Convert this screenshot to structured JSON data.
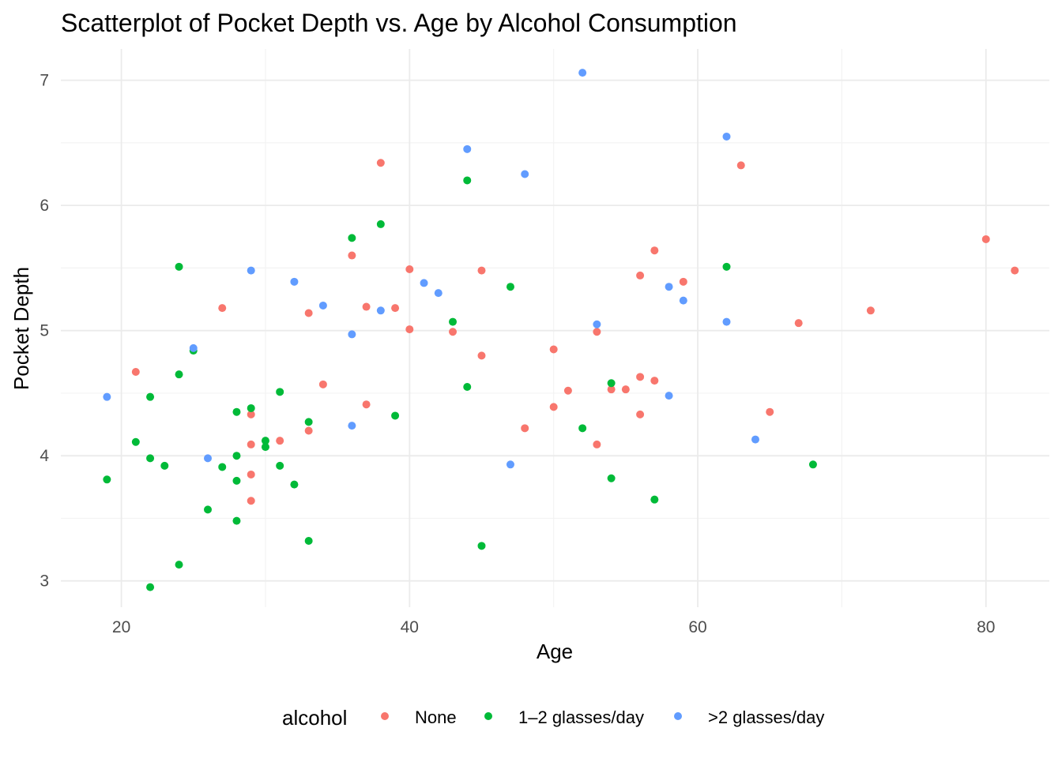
{
  "chart_data": {
    "type": "scatter",
    "title": "Scatterplot of Pocket Depth vs. Age by Alcohol Consumption",
    "xlabel": "Age",
    "ylabel": "Pocket Depth",
    "xlim": [
      15.8,
      84.4
    ],
    "ylim": [
      2.79,
      7.25
    ],
    "x_ticks": [
      20,
      40,
      60,
      80
    ],
    "y_ticks": [
      3,
      4,
      5,
      6,
      7
    ],
    "grid": true,
    "legend": {
      "title": "alcohol",
      "position": "bottom"
    },
    "series": [
      {
        "name": "None",
        "color": "#F8766D",
        "points": [
          [
            21,
            4.67
          ],
          [
            27,
            5.18
          ],
          [
            29,
            4.33
          ],
          [
            29,
            4.09
          ],
          [
            29,
            3.85
          ],
          [
            29,
            3.64
          ],
          [
            31,
            4.12
          ],
          [
            33,
            5.14
          ],
          [
            33,
            4.2
          ],
          [
            34,
            4.57
          ],
          [
            36,
            5.6
          ],
          [
            37,
            5.19
          ],
          [
            37,
            4.41
          ],
          [
            38,
            6.34
          ],
          [
            39,
            5.18
          ],
          [
            40,
            5.49
          ],
          [
            40,
            5.01
          ],
          [
            43,
            4.99
          ],
          [
            45,
            5.48
          ],
          [
            45,
            4.8
          ],
          [
            48,
            4.22
          ],
          [
            50,
            4.85
          ],
          [
            50,
            4.39
          ],
          [
            51,
            4.52
          ],
          [
            53,
            4.99
          ],
          [
            53,
            4.09
          ],
          [
            54,
            4.53
          ],
          [
            55,
            4.53
          ],
          [
            56,
            5.44
          ],
          [
            56,
            4.63
          ],
          [
            56,
            4.33
          ],
          [
            57,
            5.64
          ],
          [
            57,
            4.6
          ],
          [
            59,
            5.39
          ],
          [
            63,
            6.32
          ],
          [
            65,
            4.35
          ],
          [
            67,
            5.06
          ],
          [
            72,
            5.16
          ],
          [
            80,
            5.73
          ],
          [
            82,
            5.48
          ]
        ]
      },
      {
        "name": "1–2 glasses/day",
        "color": "#00BA38",
        "points": [
          [
            19,
            3.81
          ],
          [
            21,
            4.11
          ],
          [
            22,
            4.47
          ],
          [
            22,
            3.98
          ],
          [
            22,
            2.95
          ],
          [
            23,
            3.92
          ],
          [
            24,
            5.51
          ],
          [
            24,
            4.65
          ],
          [
            24,
            3.13
          ],
          [
            25,
            4.84
          ],
          [
            26,
            3.57
          ],
          [
            27,
            3.91
          ],
          [
            28,
            4.35
          ],
          [
            28,
            4.0
          ],
          [
            28,
            3.8
          ],
          [
            28,
            3.48
          ],
          [
            29,
            4.38
          ],
          [
            30,
            4.12
          ],
          [
            30,
            4.07
          ],
          [
            31,
            4.51
          ],
          [
            31,
            3.92
          ],
          [
            32,
            3.77
          ],
          [
            33,
            4.27
          ],
          [
            33,
            3.32
          ],
          [
            36,
            5.74
          ],
          [
            38,
            5.85
          ],
          [
            39,
            4.32
          ],
          [
            43,
            5.07
          ],
          [
            44,
            6.2
          ],
          [
            44,
            4.55
          ],
          [
            45,
            3.28
          ],
          [
            47,
            5.35
          ],
          [
            52,
            4.22
          ],
          [
            54,
            4.58
          ],
          [
            54,
            3.82
          ],
          [
            57,
            3.65
          ],
          [
            62,
            5.51
          ],
          [
            68,
            3.93
          ]
        ]
      },
      {
        "name": ">2 glasses/day",
        "color": "#619CFF",
        "points": [
          [
            19,
            4.47
          ],
          [
            25,
            4.86
          ],
          [
            26,
            3.98
          ],
          [
            29,
            5.48
          ],
          [
            32,
            5.39
          ],
          [
            34,
            5.2
          ],
          [
            36,
            4.97
          ],
          [
            36,
            4.24
          ],
          [
            38,
            5.16
          ],
          [
            41,
            5.38
          ],
          [
            42,
            5.3
          ],
          [
            44,
            6.45
          ],
          [
            47,
            3.93
          ],
          [
            48,
            6.25
          ],
          [
            52,
            7.06
          ],
          [
            53,
            5.05
          ],
          [
            58,
            5.35
          ],
          [
            58,
            4.48
          ],
          [
            59,
            5.24
          ],
          [
            62,
            6.55
          ],
          [
            62,
            5.07
          ],
          [
            64,
            4.13
          ]
        ]
      }
    ]
  }
}
